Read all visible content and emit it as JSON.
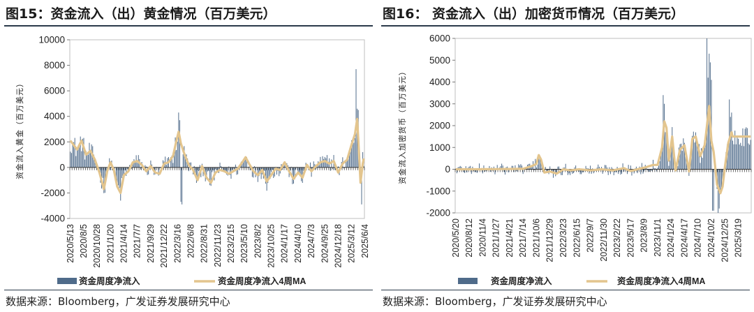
{
  "panels": [
    {
      "title": "图15：资金流入（出）黄金情况（百万美元）",
      "source": "数据来源：Bloomberg，广发证券发展研究中心",
      "chart_data": {
        "type": "bar",
        "ylabel": "资金流入黄金（百万美元）",
        "ylim": [
          -4000,
          10000
        ],
        "yticks": [
          -4000,
          -2000,
          0,
          2000,
          4000,
          6000,
          8000,
          10000
        ],
        "xticks": [
          "2020/5/13",
          "2020/8/5",
          "2020/10/28",
          "2021/1/20",
          "2021/4/14",
          "2021/7/7",
          "2021/9/29",
          "2021/12/22",
          "2022/3/16",
          "2022/6/8",
          "2022/8/31",
          "2022/11/23",
          "2023/2/15",
          "2023/5/10",
          "2023/8/2",
          "2023/10/25",
          "2024/1/17",
          "2024/4/10",
          "2024/7/3",
          "2024/9/25",
          "2024/12/18",
          "2025/3/12",
          "2025/6/4"
        ],
        "bars_per_tick": 12,
        "n_bars": 264,
        "legend": [
          "资金周度净流入",
          "资金周度净流入4周MA"
        ],
        "colors": {
          "bar": "#4f6b8a",
          "ma": "#e3c58e"
        },
        "ma_anchors": [
          [
            0,
            2100
          ],
          [
            6,
            1400
          ],
          [
            10,
            2100
          ],
          [
            14,
            1000
          ],
          [
            18,
            1300
          ],
          [
            22,
            600
          ],
          [
            26,
            -400
          ],
          [
            30,
            -1700
          ],
          [
            33,
            -300
          ],
          [
            36,
            400
          ],
          [
            39,
            -200
          ],
          [
            42,
            -1500
          ],
          [
            45,
            -2000
          ],
          [
            48,
            -600
          ],
          [
            52,
            -300
          ],
          [
            56,
            400
          ],
          [
            60,
            500
          ],
          [
            64,
            200
          ],
          [
            68,
            -300
          ],
          [
            72,
            100
          ],
          [
            76,
            -400
          ],
          [
            80,
            -500
          ],
          [
            84,
            300
          ],
          [
            88,
            400
          ],
          [
            92,
            900
          ],
          [
            95,
            2100
          ],
          [
            97,
            2800
          ],
          [
            99,
            1900
          ],
          [
            102,
            1100
          ],
          [
            106,
            200
          ],
          [
            110,
            -200
          ],
          [
            114,
            -1000
          ],
          [
            118,
            100
          ],
          [
            122,
            -800
          ],
          [
            126,
            -1200
          ],
          [
            130,
            -400
          ],
          [
            134,
            -200
          ],
          [
            138,
            -300
          ],
          [
            142,
            -500
          ],
          [
            146,
            -300
          ],
          [
            150,
            -100
          ],
          [
            154,
            400
          ],
          [
            157,
            800
          ],
          [
            160,
            300
          ],
          [
            164,
            -300
          ],
          [
            168,
            -600
          ],
          [
            172,
            -200
          ],
          [
            176,
            -1100
          ],
          [
            180,
            -600
          ],
          [
            184,
            -100
          ],
          [
            188,
            -200
          ],
          [
            192,
            400
          ],
          [
            196,
            -300
          ],
          [
            200,
            -900
          ],
          [
            204,
            -400
          ],
          [
            208,
            -800
          ],
          [
            212,
            200
          ],
          [
            216,
            -300
          ],
          [
            220,
            100
          ],
          [
            224,
            400
          ],
          [
            228,
            500
          ],
          [
            232,
            300
          ],
          [
            236,
            500
          ],
          [
            240,
            -400
          ],
          [
            244,
            300
          ],
          [
            248,
            600
          ],
          [
            252,
            1800
          ],
          [
            255,
            2600
          ],
          [
            257,
            3800
          ],
          [
            258,
            2200
          ],
          [
            260,
            -1200
          ],
          [
            262,
            300
          ],
          [
            263,
            700
          ]
        ],
        "noise_scale": 950,
        "spikes": [
          [
            97,
            4300
          ],
          [
            98,
            3700
          ],
          [
            99,
            -2700
          ],
          [
            100,
            -2900
          ],
          [
            256,
            7700
          ],
          [
            257,
            4600
          ],
          [
            258,
            4500
          ],
          [
            261,
            -2900
          ],
          [
            262,
            1200
          ]
        ]
      }
    },
    {
      "title": "图16：  资金流入（出）加密货币情况（百万美元）",
      "source": "数据来源：Bloomberg，广发证券发展研究中心",
      "chart_data": {
        "type": "bar",
        "ylabel": "资金流入加密货币（百万美元）",
        "ylim": [
          -2000,
          6000
        ],
        "yticks": [
          -2000,
          -1000,
          0,
          1000,
          2000,
          3000,
          4000,
          5000,
          6000
        ],
        "xticks": [
          "2020/5/20",
          "2020/8/12",
          "2020/11/4",
          "2021/1/27",
          "2021/4/21",
          "2021/7/14",
          "2021/10/6",
          "2021/12/29",
          "2022/3/23",
          "2022/6/15",
          "2022/9/7",
          "2022/11/30",
          "2023/2/22",
          "2023/5/17",
          "2023/8/9",
          "2023/11/1",
          "2024/1/24",
          "2024/4/17",
          "2024/7/10",
          "2024/10/2",
          "2024/12/25",
          "2025/3/19"
        ],
        "bars_per_tick": 12,
        "n_bars": 264,
        "legend": [
          "资金周度净流入",
          "资金周度净流入4周MA"
        ],
        "colors": {
          "bar": "#4f6b8a",
          "ma": "#e3c58e"
        },
        "ma_anchors": [
          [
            0,
            0
          ],
          [
            20,
            0
          ],
          [
            40,
            10
          ],
          [
            60,
            20
          ],
          [
            68,
            150
          ],
          [
            72,
            250
          ],
          [
            74,
            650
          ],
          [
            76,
            450
          ],
          [
            79,
            -150
          ],
          [
            84,
            -100
          ],
          [
            90,
            -200
          ],
          [
            96,
            0
          ],
          [
            102,
            -50
          ],
          [
            110,
            0
          ],
          [
            120,
            -50
          ],
          [
            130,
            0
          ],
          [
            140,
            -50
          ],
          [
            150,
            50
          ],
          [
            156,
            -80
          ],
          [
            162,
            0
          ],
          [
            170,
            100
          ],
          [
            176,
            200
          ],
          [
            180,
            200
          ],
          [
            184,
            1000
          ],
          [
            186,
            2200
          ],
          [
            188,
            1900
          ],
          [
            190,
            400
          ],
          [
            193,
            1500
          ],
          [
            196,
            -50
          ],
          [
            200,
            900
          ],
          [
            204,
            1100
          ],
          [
            208,
            -100
          ],
          [
            211,
            1400
          ],
          [
            214,
            1500
          ],
          [
            218,
            600
          ],
          [
            222,
            1100
          ],
          [
            224,
            2000
          ],
          [
            226,
            2900
          ],
          [
            228,
            1300
          ],
          [
            230,
            800
          ],
          [
            233,
            -700
          ],
          [
            236,
            -1100
          ],
          [
            238,
            -800
          ],
          [
            240,
            100
          ],
          [
            243,
            1200
          ],
          [
            246,
            1700
          ],
          [
            247,
            1500
          ]
        ],
        "noise_scale": 450,
        "spikes": [
          [
            185,
            3400
          ],
          [
            186,
            3000
          ],
          [
            224,
            6000
          ],
          [
            225,
            4200
          ],
          [
            226,
            5300
          ],
          [
            227,
            4900
          ],
          [
            228,
            4100
          ],
          [
            229,
            -1900
          ],
          [
            230,
            -1900
          ],
          [
            234,
            -2000
          ],
          [
            235,
            -1800
          ],
          [
            244,
            3200
          ],
          [
            245,
            2400
          ],
          [
            246,
            2600
          ]
        ]
      }
    }
  ]
}
